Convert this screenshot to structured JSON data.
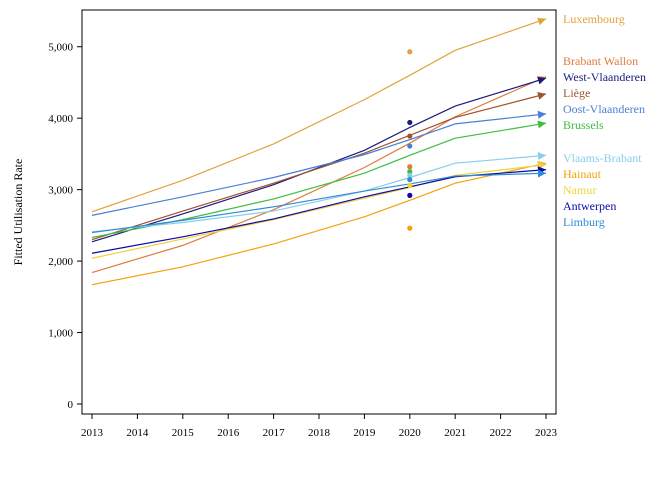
{
  "chart_data": {
    "type": "line",
    "ylabel": "Fitted Utilisation Rate",
    "xlabel": "",
    "x": [
      2013,
      2014,
      2015,
      2016,
      2017,
      2018,
      2019,
      2020,
      2021,
      2022,
      2023
    ],
    "xlim": [
      2013,
      2023
    ],
    "ylim": [
      0,
      5500
    ],
    "yticks": [
      0,
      1000,
      2000,
      3000,
      4000,
      5000
    ],
    "ytick_labels": [
      "0",
      "1,000",
      "2,000",
      "3,000",
      "4,000",
      "5,000"
    ],
    "xtick_labels": [
      "2013",
      "2014",
      "2015",
      "2016",
      "2017",
      "2018",
      "2019",
      "2020",
      "2021",
      "2022",
      "2023"
    ],
    "grid": false,
    "legend_placement": "right, at line ends",
    "observed_x": 2020,
    "series": [
      {
        "name": "Luxembourg",
        "color": "#E3A33B",
        "points": [
          [
            2013,
            2690
          ],
          [
            2015,
            3130
          ],
          [
            2017,
            3640
          ],
          [
            2019,
            4260
          ],
          [
            2020,
            4600
          ],
          [
            2021,
            4950
          ],
          [
            2023,
            5390
          ]
        ],
        "observed": 4930
      },
      {
        "name": "Brabant Wallon",
        "color": "#E07B3C",
        "points": [
          [
            2013,
            1840
          ],
          [
            2015,
            2220
          ],
          [
            2017,
            2720
          ],
          [
            2019,
            3310
          ],
          [
            2020,
            3650
          ],
          [
            2021,
            4020
          ],
          [
            2023,
            4580
          ]
        ],
        "observed": 3320
      },
      {
        "name": "West-Vlaanderen",
        "color": "#1B1B7E",
        "points": [
          [
            2013,
            2270
          ],
          [
            2015,
            2660
          ],
          [
            2017,
            3070
          ],
          [
            2019,
            3550
          ],
          [
            2020,
            3870
          ],
          [
            2021,
            4170
          ],
          [
            2023,
            4560
          ]
        ],
        "observed": 3940
      },
      {
        "name": "Liège",
        "color": "#A0522D",
        "points": [
          [
            2013,
            2300
          ],
          [
            2015,
            2700
          ],
          [
            2017,
            3090
          ],
          [
            2019,
            3510
          ],
          [
            2020,
            3760
          ],
          [
            2021,
            4010
          ],
          [
            2023,
            4340
          ]
        ],
        "observed": 3750
      },
      {
        "name": "Oost-Vlaanderen",
        "color": "#4A7FD6",
        "points": [
          [
            2013,
            2640
          ],
          [
            2015,
            2900
          ],
          [
            2017,
            3170
          ],
          [
            2019,
            3490
          ],
          [
            2020,
            3700
          ],
          [
            2021,
            3920
          ],
          [
            2023,
            4060
          ]
        ],
        "observed": 3610
      },
      {
        "name": "Brussels",
        "color": "#3DBE3D",
        "points": [
          [
            2013,
            2330
          ],
          [
            2015,
            2580
          ],
          [
            2017,
            2870
          ],
          [
            2019,
            3230
          ],
          [
            2020,
            3480
          ],
          [
            2021,
            3720
          ],
          [
            2023,
            3930
          ]
        ],
        "observed": 3250
      },
      {
        "name": "Vlaams-Brabant",
        "color": "#87CEEB",
        "points": [
          [
            2013,
            2410
          ],
          [
            2015,
            2540
          ],
          [
            2017,
            2700
          ],
          [
            2019,
            2980
          ],
          [
            2020,
            3170
          ],
          [
            2021,
            3370
          ],
          [
            2023,
            3480
          ]
        ],
        "observed": 3200
      },
      {
        "name": "Hainaut",
        "color": "#F2A20D",
        "points": [
          [
            2013,
            1670
          ],
          [
            2015,
            1920
          ],
          [
            2017,
            2240
          ],
          [
            2019,
            2620
          ],
          [
            2020,
            2850
          ],
          [
            2021,
            3090
          ],
          [
            2023,
            3370
          ]
        ],
        "observed": 2460
      },
      {
        "name": "Namur",
        "color": "#F2D13A",
        "points": [
          [
            2013,
            2040
          ],
          [
            2015,
            2310
          ],
          [
            2017,
            2580
          ],
          [
            2019,
            2880
          ],
          [
            2020,
            3030
          ],
          [
            2021,
            3200
          ],
          [
            2023,
            3350
          ]
        ],
        "observed": 3060
      },
      {
        "name": "Antwerpen",
        "color": "#0A0AA8",
        "points": [
          [
            2013,
            2110
          ],
          [
            2015,
            2340
          ],
          [
            2017,
            2590
          ],
          [
            2019,
            2900
          ],
          [
            2020,
            3040
          ],
          [
            2021,
            3180
          ],
          [
            2023,
            3280
          ]
        ],
        "observed": 2920
      },
      {
        "name": "Limburg",
        "color": "#2E8BD6",
        "points": [
          [
            2013,
            2400
          ],
          [
            2015,
            2570
          ],
          [
            2017,
            2760
          ],
          [
            2019,
            2980
          ],
          [
            2020,
            3080
          ],
          [
            2021,
            3190
          ],
          [
            2023,
            3230
          ]
        ],
        "observed": 3140
      }
    ],
    "legend_order": [
      "Luxembourg",
      "Brabant Wallon",
      "West-Vlaanderen",
      "Liège",
      "Oost-Vlaanderen",
      "Brussels",
      "Vlaams-Brabant",
      "Hainaut",
      "Namur",
      "Antwerpen",
      "Limburg"
    ]
  }
}
